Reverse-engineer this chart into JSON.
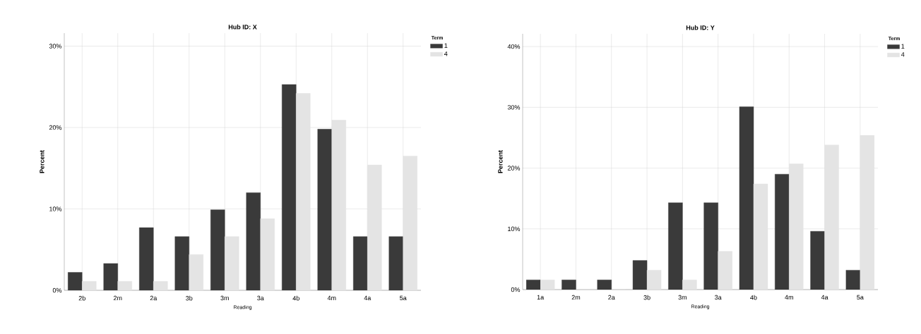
{
  "chart_data": [
    {
      "type": "bar",
      "title": "Hub ID: X",
      "xlabel": "Reading",
      "ylabel": "Percent",
      "legend_title": "Term",
      "categories": [
        "2b",
        "2m",
        "2a",
        "3b",
        "3m",
        "3a",
        "4b",
        "4m",
        "4a",
        "5a"
      ],
      "series": [
        {
          "name": "1",
          "color": "#3a3a3a",
          "values": [
            2.2,
            3.3,
            7.7,
            6.6,
            9.9,
            12.0,
            25.3,
            19.8,
            6.6,
            6.6
          ]
        },
        {
          "name": "4",
          "color": "#e4e4e4",
          "values": [
            1.1,
            1.1,
            1.1,
            4.4,
            6.6,
            8.8,
            24.2,
            20.9,
            15.4,
            16.5
          ]
        }
      ],
      "ylim": [
        0,
        31.6
      ],
      "yticks": [
        {
          "value": 0,
          "label": "0%"
        },
        {
          "value": 10,
          "label": "10%"
        },
        {
          "value": 20,
          "label": "20%"
        },
        {
          "value": 30,
          "label": "30%"
        }
      ],
      "grid": true,
      "legend": "top right"
    },
    {
      "type": "bar",
      "title": "Hub ID: Y",
      "xlabel": "Reading",
      "ylabel": "Percent",
      "legend_title": "Term",
      "categories": [
        "1a",
        "2m",
        "2a",
        "3b",
        "3m",
        "3a",
        "4b",
        "4m",
        "4a",
        "5a"
      ],
      "series": [
        {
          "name": "1",
          "color": "#3a3a3a",
          "values": [
            1.6,
            1.6,
            1.6,
            4.8,
            14.3,
            14.3,
            30.1,
            19.0,
            9.6,
            3.2
          ]
        },
        {
          "name": "4",
          "color": "#e4e4e4",
          "values": [
            1.6,
            0,
            0,
            3.2,
            1.6,
            6.3,
            17.4,
            20.7,
            23.8,
            25.4
          ]
        }
      ],
      "ylim": [
        0,
        42.1
      ],
      "yticks": [
        {
          "value": 0,
          "label": "0%"
        },
        {
          "value": 10,
          "label": "10%"
        },
        {
          "value": 20,
          "label": "20%"
        },
        {
          "value": 30,
          "label": "30%"
        },
        {
          "value": 40,
          "label": "40%"
        }
      ],
      "grid": true,
      "legend": "top right"
    }
  ]
}
